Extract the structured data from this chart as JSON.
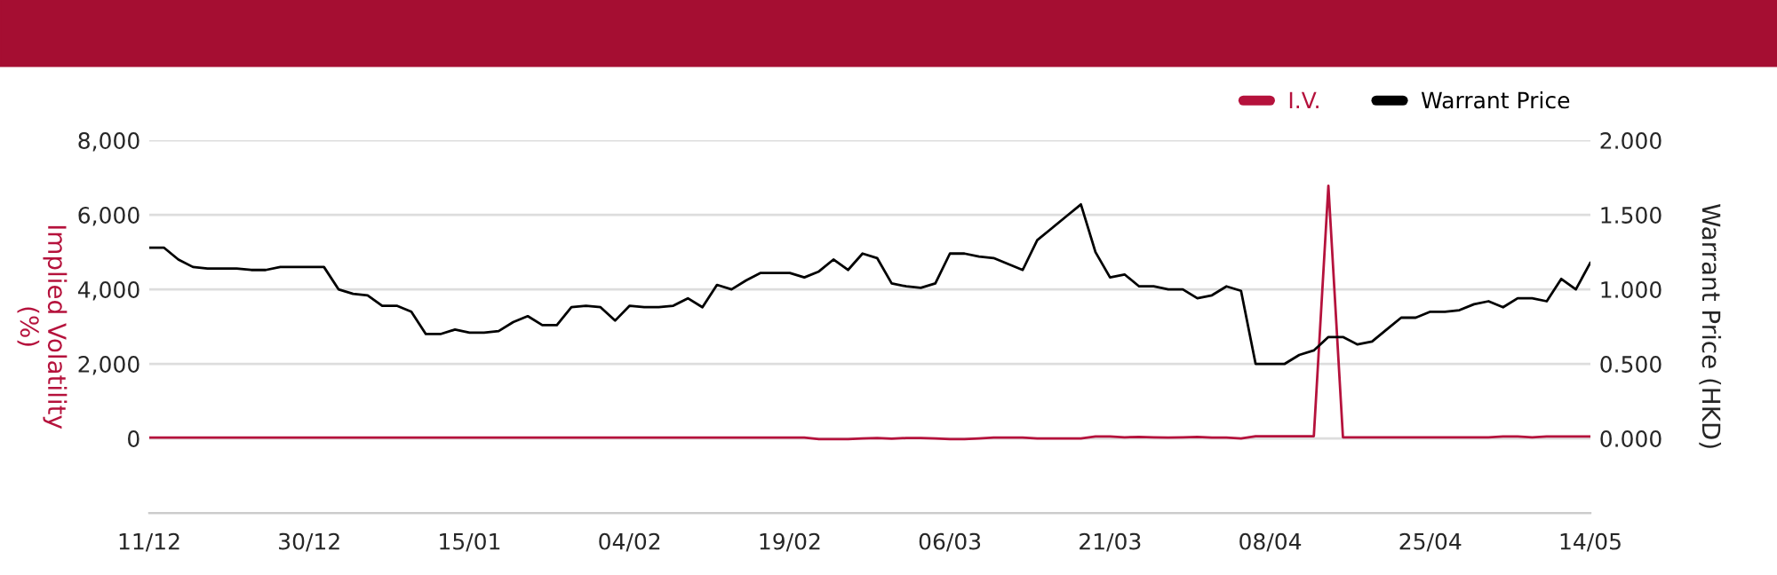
{
  "chart_data": {
    "type": "line",
    "ylabel": "Implied Volatility\n(%)",
    "y2label": "Warrant Price (HKD)",
    "categories": [
      "11/12",
      null,
      null,
      null,
      null,
      null,
      null,
      null,
      null,
      null,
      null,
      "30/12",
      null,
      null,
      null,
      null,
      null,
      null,
      null,
      null,
      null,
      null,
      "15/01",
      null,
      null,
      null,
      null,
      null,
      null,
      null,
      null,
      null,
      null,
      "04/02",
      null,
      null,
      null,
      null,
      null,
      null,
      null,
      null,
      null,
      null,
      "19/02",
      null,
      null,
      null,
      null,
      null,
      null,
      null,
      null,
      null,
      null,
      "06/03",
      null,
      null,
      null,
      null,
      null,
      null,
      null,
      null,
      null,
      null,
      "21/03",
      null,
      null,
      null,
      null,
      null,
      null,
      null,
      null,
      null,
      null,
      "08/04",
      null,
      null,
      null,
      null,
      null,
      null,
      null,
      null,
      null,
      null,
      "25/04",
      null,
      null,
      null,
      null,
      null,
      null,
      null,
      null,
      null,
      null,
      "14/05"
    ],
    "series": [
      {
        "name": "I.V.",
        "color": "#b5123c",
        "values": [
          20,
          20,
          20,
          20,
          20,
          20,
          20,
          20,
          20,
          20,
          20,
          20,
          20,
          20,
          20,
          20,
          20,
          20,
          20,
          20,
          20,
          20,
          20,
          20,
          20,
          20,
          20,
          20,
          20,
          20,
          20,
          20,
          20,
          20,
          20,
          20,
          20,
          20,
          20,
          20,
          20,
          20,
          20,
          20,
          20,
          20,
          -20,
          -20,
          -20,
          0,
          10,
          -10,
          10,
          10,
          0,
          -20,
          -20,
          0,
          20,
          20,
          20,
          0,
          0,
          0,
          0,
          50,
          50,
          30,
          40,
          30,
          20,
          30,
          40,
          20,
          20,
          0,
          60,
          60,
          60,
          60,
          60,
          6780,
          30,
          30,
          30,
          30,
          30,
          30,
          30,
          30,
          30,
          30,
          30,
          50,
          50,
          30,
          50,
          50,
          50,
          50
        ]
      },
      {
        "name": "Warrant Price",
        "color": "#000000",
        "axis": "y2",
        "values": [
          1.28,
          1.28,
          1.2,
          1.15,
          1.14,
          1.14,
          1.14,
          1.13,
          1.13,
          1.15,
          1.15,
          1.15,
          1.15,
          1.0,
          0.97,
          0.96,
          0.89,
          0.89,
          0.85,
          0.7,
          0.7,
          0.73,
          0.71,
          0.71,
          0.72,
          0.78,
          0.82,
          0.76,
          0.76,
          0.88,
          0.89,
          0.88,
          0.79,
          0.89,
          0.88,
          0.88,
          0.89,
          0.94,
          0.88,
          1.03,
          1.0,
          1.06,
          1.11,
          1.11,
          1.11,
          1.08,
          1.12,
          1.2,
          1.13,
          1.24,
          1.21,
          1.04,
          1.02,
          1.01,
          1.04,
          1.24,
          1.24,
          1.22,
          1.21,
          1.17,
          1.13,
          1.33,
          1.41,
          1.49,
          1.57,
          1.25,
          1.08,
          1.1,
          1.02,
          1.02,
          1.0,
          1.0,
          0.94,
          0.96,
          1.02,
          0.99,
          0.5,
          0.5,
          0.5,
          0.56,
          0.59,
          0.68,
          0.68,
          0.63,
          0.65,
          0.73,
          0.81,
          0.81,
          0.85,
          0.85,
          0.86,
          0.9,
          0.92,
          0.88,
          0.94,
          0.94,
          0.92,
          1.07,
          1.0,
          1.18
        ]
      }
    ],
    "ylim": [
      -2000,
      8000
    ],
    "yticks": [
      {
        "value": 0,
        "label": "0"
      },
      {
        "value": 2000,
        "label": "2,000"
      },
      {
        "value": 4000,
        "label": "4,000"
      },
      {
        "value": 6000,
        "label": "6,000"
      },
      {
        "value": 8000,
        "label": "8,000"
      }
    ],
    "y2lim": [
      -0.5,
      2.0
    ],
    "y2ticks": [
      {
        "value": 0,
        "label": "0.000"
      },
      {
        "value": 0.5,
        "label": "0.500"
      },
      {
        "value": 1.0,
        "label": "1.000"
      },
      {
        "value": 1.5,
        "label": "1.500"
      },
      {
        "value": 2.0,
        "label": "2.000"
      }
    ],
    "grid": "y",
    "legend": "top right",
    "marker": "none",
    "line_style": "solid"
  }
}
